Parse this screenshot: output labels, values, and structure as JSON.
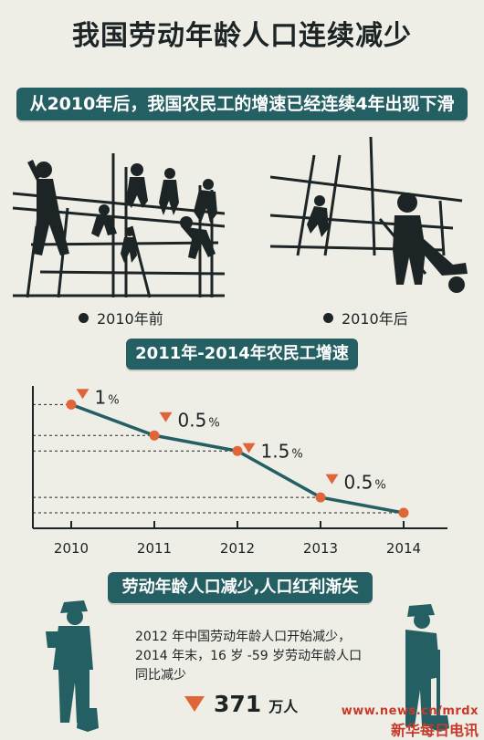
{
  "title": "我国劳动年龄人口连续减少",
  "banner1": "从2010年后，我国农民工的增速已经连续4年出现下滑",
  "caption_before": "2010年前",
  "caption_after": "2010年后",
  "banner2": "2011年-2014年农民工增速",
  "chart_data": {
    "type": "line",
    "title": "2011年-2014年农民工增速",
    "categories": [
      "2010",
      "2011",
      "2012",
      "2013",
      "2014"
    ],
    "values": [
      4.0,
      3.0,
      2.5,
      1.0,
      0.5
    ],
    "decline_labels": [
      {
        "value": "1",
        "unit": "%"
      },
      {
        "value": "0.5",
        "unit": "%"
      },
      {
        "value": "1.5",
        "unit": "%"
      },
      {
        "value": "0.5",
        "unit": "%"
      }
    ],
    "xlabel": "",
    "ylabel": "",
    "ylim": [
      0,
      4.6
    ],
    "grid": "dashed reference lines",
    "colors": {
      "line": "#245f63",
      "marker": "#e0663a",
      "down_arrow": "#e0663a"
    }
  },
  "banner3": "劳动年龄人口减少,人口红利渐失",
  "paragraph": "2012 年中国劳动年龄人口开始减少，2014 年末，16 岁 -59 岁劳动年龄人口同比减少",
  "big_number": "371",
  "big_unit": "万人",
  "watermark_url": "www.news.cn/mrdx",
  "watermark_brand": "新华每日电讯",
  "icons": [
    "workers-on-scaffold-icon",
    "worker-with-wheelbarrow-icon",
    "farmer-with-shovel-icon",
    "old-worker-with-shovel-icon",
    "down-triangle-icon"
  ]
}
